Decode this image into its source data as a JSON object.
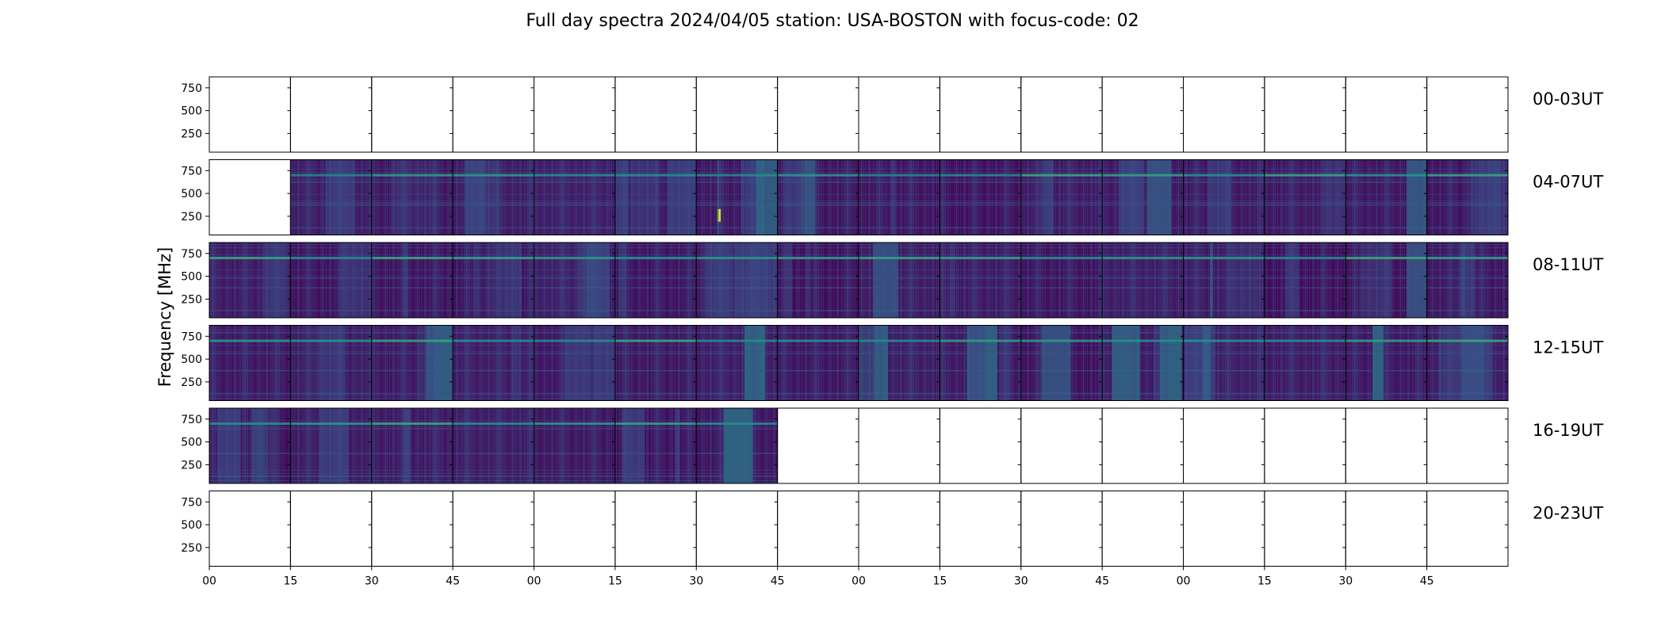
{
  "chart_data": {
    "type": "heatmap",
    "title": "Full day spectra 2024/04/05 station: USA-BOSTON with focus-code: 02",
    "ylabel": "Frequency [MHz]",
    "xlabel": "",
    "colormap": "viridis",
    "colors": {
      "low": "#440154",
      "mid": "#2a788e",
      "high": "#fde725",
      "background": "#ffffff"
    },
    "ylim": [
      45,
      870
    ],
    "yticks": [
      250,
      500,
      750
    ],
    "xtick_labels": [
      "00",
      "15",
      "30",
      "45",
      "00",
      "15",
      "30",
      "45",
      "00",
      "15",
      "30",
      "45",
      "00",
      "15",
      "30",
      "45"
    ],
    "panels_per_row": 16,
    "panel_minutes": 15,
    "rows": [
      {
        "label": "00-03UT",
        "data_panels": []
      },
      {
        "label": "04-07UT",
        "data_panels": [
          1,
          2,
          3,
          4,
          5,
          6,
          7,
          8,
          9,
          10,
          11,
          12,
          13,
          14,
          15
        ]
      },
      {
        "label": "08-11UT",
        "data_panels": [
          0,
          1,
          2,
          3,
          4,
          5,
          6,
          7,
          8,
          9,
          10,
          11,
          12,
          13,
          14,
          15
        ]
      },
      {
        "label": "12-15UT",
        "data_panels": [
          0,
          1,
          2,
          3,
          4,
          5,
          6,
          7,
          8,
          9,
          10,
          11,
          12,
          13,
          14,
          15
        ]
      },
      {
        "label": "16-19UT",
        "data_panels": [
          0,
          1,
          2,
          3,
          4,
          5,
          6
        ]
      },
      {
        "label": "20-23UT",
        "data_panels": []
      }
    ],
    "features": {
      "persistent_line_mhz": 700,
      "secondary_lines_mhz": [
        380,
        130
      ],
      "bright_burst": {
        "row": 1,
        "panel": 6,
        "freq_mhz": 260
      }
    }
  }
}
